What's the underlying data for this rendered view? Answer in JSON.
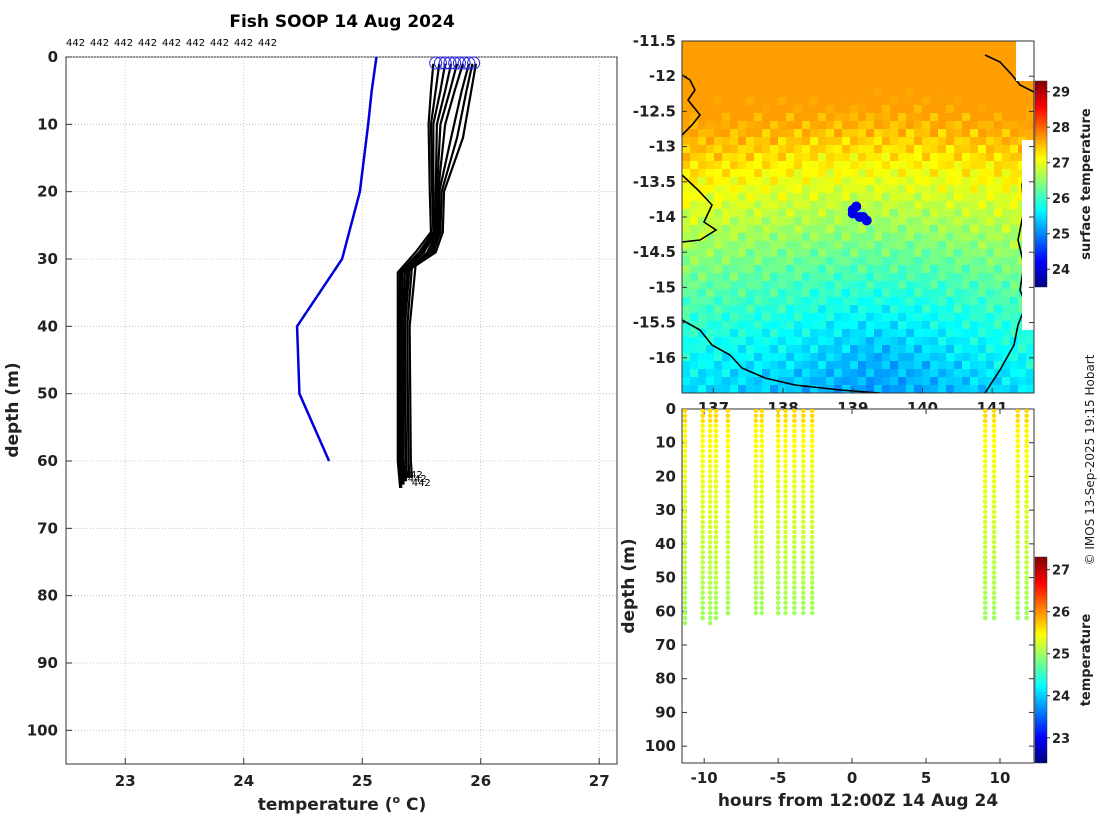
{
  "chart_data": [
    {
      "type": "line",
      "panel": "profile",
      "title": "Fish SOOP 14 Aug 2024",
      "xlabel": "temperature (",
      "xlabel_sup": "o",
      "xlabel_unit": " C)",
      "ylabel": "depth (m)",
      "xlim": [
        22.5,
        27.15
      ],
      "ylim": [
        105,
        0
      ],
      "xticks": [
        23,
        24,
        25,
        26,
        27
      ],
      "yticks": [
        0,
        10,
        20,
        30,
        40,
        50,
        60,
        70,
        80,
        90,
        100
      ],
      "grid": true,
      "profile_id_label": "442",
      "profile_id_count": 9,
      "climatology": {
        "color": "#0000dd",
        "points": [
          [
            25.12,
            0
          ],
          [
            25.08,
            5
          ],
          [
            25.05,
            10
          ],
          [
            24.98,
            20
          ],
          [
            24.83,
            30
          ],
          [
            24.45,
            40
          ],
          [
            24.47,
            50
          ],
          [
            24.72,
            60
          ]
        ]
      },
      "profiles": {
        "color": "#000000",
        "surface_markers": [
          25.62,
          25.66,
          25.7,
          25.74,
          25.78,
          25.82,
          25.86,
          25.9,
          25.94
        ],
        "end_labels": [
          "442",
          "442",
          "442"
        ],
        "series": [
          [
            [
              25.6,
              1
            ],
            [
              25.58,
              5
            ],
            [
              25.56,
              10
            ],
            [
              25.57,
              20
            ],
            [
              25.58,
              26
            ],
            [
              25.45,
              29
            ],
            [
              25.3,
              32
            ],
            [
              25.3,
              40
            ],
            [
              25.3,
              60
            ],
            [
              25.32,
              64
            ]
          ],
          [
            [
              25.65,
              1
            ],
            [
              25.62,
              5
            ],
            [
              25.58,
              10
            ],
            [
              25.59,
              20
            ],
            [
              25.6,
              26
            ],
            [
              25.48,
              29
            ],
            [
              25.32,
              32
            ],
            [
              25.31,
              40
            ],
            [
              25.31,
              60
            ],
            [
              25.33,
              64
            ]
          ],
          [
            [
              25.7,
              1
            ],
            [
              25.66,
              5
            ],
            [
              25.6,
              10
            ],
            [
              25.6,
              20
            ],
            [
              25.61,
              26
            ],
            [
              25.5,
              29
            ],
            [
              25.33,
              32
            ],
            [
              25.32,
              40
            ],
            [
              25.32,
              60
            ],
            [
              25.34,
              63.5
            ]
          ],
          [
            [
              25.75,
              1
            ],
            [
              25.7,
              5
            ],
            [
              25.63,
              10
            ],
            [
              25.62,
              20
            ],
            [
              25.62,
              26
            ],
            [
              25.52,
              29
            ],
            [
              25.34,
              32
            ],
            [
              25.33,
              40
            ],
            [
              25.33,
              60
            ],
            [
              25.35,
              63.5
            ]
          ],
          [
            [
              25.8,
              1
            ],
            [
              25.74,
              5
            ],
            [
              25.66,
              10
            ],
            [
              25.63,
              20
            ],
            [
              25.63,
              26
            ],
            [
              25.55,
              29
            ],
            [
              25.36,
              32
            ],
            [
              25.34,
              40
            ],
            [
              25.34,
              60
            ],
            [
              25.36,
              63
            ]
          ],
          [
            [
              25.85,
              1
            ],
            [
              25.78,
              5
            ],
            [
              25.7,
              10
            ],
            [
              25.64,
              20
            ],
            [
              25.64,
              26
            ],
            [
              25.57,
              29
            ],
            [
              25.38,
              32
            ],
            [
              25.35,
              40
            ],
            [
              25.35,
              60
            ],
            [
              25.37,
              63
            ]
          ],
          [
            [
              25.9,
              1
            ],
            [
              25.84,
              5
            ],
            [
              25.75,
              12
            ],
            [
              25.65,
              20
            ],
            [
              25.65,
              26
            ],
            [
              25.58,
              29
            ],
            [
              25.4,
              31
            ],
            [
              25.36,
              40
            ],
            [
              25.37,
              60
            ],
            [
              25.38,
              62.5
            ]
          ],
          [
            [
              25.93,
              1
            ],
            [
              25.88,
              5
            ],
            [
              25.8,
              12
            ],
            [
              25.67,
              20
            ],
            [
              25.66,
              26
            ],
            [
              25.6,
              29
            ],
            [
              25.42,
              31
            ],
            [
              25.38,
              40
            ],
            [
              25.39,
              60
            ],
            [
              25.4,
              62.5
            ]
          ],
          [
            [
              25.96,
              1
            ],
            [
              25.92,
              5
            ],
            [
              25.85,
              12
            ],
            [
              25.69,
              20
            ],
            [
              25.68,
              26
            ],
            [
              25.62,
              29
            ],
            [
              25.45,
              31
            ],
            [
              25.4,
              40
            ],
            [
              25.41,
              60
            ],
            [
              25.42,
              62.5
            ]
          ]
        ]
      }
    },
    {
      "type": "heatmap",
      "panel": "map",
      "yticks": [
        -11.5,
        -12,
        -12.5,
        -13,
        -13.5,
        -14,
        -14.5,
        -15,
        -15.5,
        -16
      ],
      "xticks": [
        137,
        138,
        139,
        140,
        141
      ],
      "xlim": [
        136.55,
        141.6
      ],
      "ylim": [
        -16.5,
        -11.5
      ],
      "colorbar": {
        "label": "surface temperature",
        "ticks": [
          24,
          25,
          26,
          27,
          28,
          29
        ],
        "range": [
          23.5,
          29.3
        ]
      },
      "location_markers": [
        [
          139.05,
          -13.85
        ],
        [
          139.0,
          -13.95
        ],
        [
          139.1,
          -14.0
        ],
        [
          139.2,
          -14.05
        ],
        [
          139.0,
          -13.9
        ],
        [
          139.15,
          -14.0
        ]
      ],
      "marker_color": "#0000ee"
    },
    {
      "type": "scatter",
      "panel": "time-depth",
      "xlabel": "hours from 12:00Z 14 Aug 24",
      "ylabel": "depth (m)",
      "xlim": [
        -11.5,
        12.3
      ],
      "ylim": [
        105,
        0
      ],
      "xticks": [
        -10,
        -5,
        0,
        5,
        10
      ],
      "yticks": [
        0,
        10,
        20,
        30,
        40,
        50,
        60,
        70,
        80,
        90,
        100
      ],
      "colorbar": {
        "label": "temperature",
        "ticks": [
          23,
          24,
          25,
          26,
          27
        ],
        "range": [
          22.4,
          27.3
        ]
      },
      "casts": [
        {
          "t": -11.3,
          "max_depth": 63.5
        },
        {
          "t": -10.1,
          "max_depth": 62.5
        },
        {
          "t": -9.6,
          "max_depth": 63.5
        },
        {
          "t": -9.2,
          "max_depth": 62.5
        },
        {
          "t": -8.4,
          "max_depth": 61.5
        },
        {
          "t": -6.5,
          "max_depth": 61.5
        },
        {
          "t": -6.1,
          "max_depth": 61.5
        },
        {
          "t": -5.0,
          "max_depth": 61.5
        },
        {
          "t": -4.5,
          "max_depth": 61.5
        },
        {
          "t": -3.9,
          "max_depth": 61.5
        },
        {
          "t": -3.3,
          "max_depth": 61.5
        },
        {
          "t": -2.7,
          "max_depth": 61.5
        },
        {
          "t": 9.0,
          "max_depth": 62.5
        },
        {
          "t": 9.6,
          "max_depth": 62.5
        },
        {
          "t": 11.2,
          "max_depth": 62.5
        },
        {
          "t": 11.8,
          "max_depth": 62.5
        }
      ]
    }
  ],
  "credit": "© IMOS 13-Sep-2025 19:15 Hobart"
}
